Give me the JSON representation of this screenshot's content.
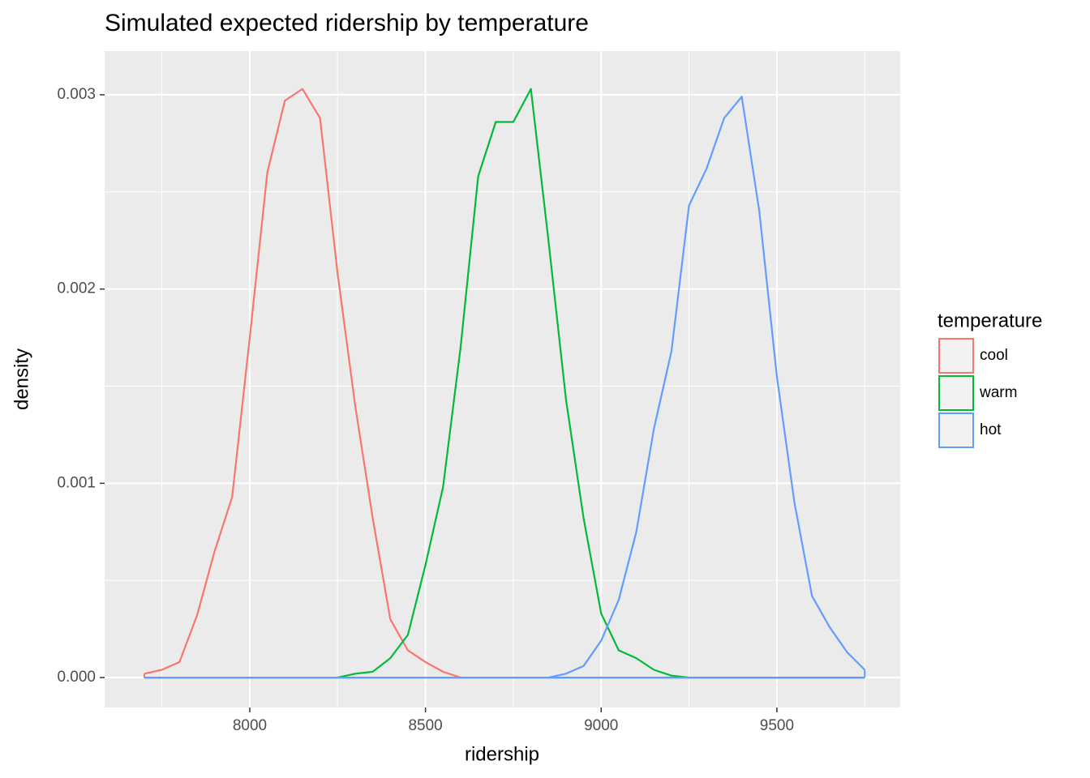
{
  "chart_data": {
    "type": "density",
    "title": "Simulated expected ridership by temperature",
    "x_label": "ridership",
    "y_label": "density",
    "legend_title": "temperature",
    "legend_position": "right",
    "x": [
      7700,
      7750,
      7800,
      7850,
      7900,
      7950,
      8000,
      8050,
      8100,
      8150,
      8200,
      8250,
      8300,
      8350,
      8400,
      8450,
      8500,
      8550,
      8600,
      8650,
      8700,
      8750,
      8800,
      8850,
      8900,
      8950,
      9000,
      9050,
      9100,
      9150,
      9200,
      9250,
      9300,
      9350,
      9400,
      9450,
      9500,
      9550,
      9600,
      9650,
      9700,
      9750
    ],
    "series": [
      {
        "name": "cool",
        "color": "#f8766d",
        "values": [
          2e-05,
          4e-05,
          8e-05,
          0.00032,
          0.00065,
          0.00093,
          0.00175,
          0.0026,
          0.00297,
          0.00303,
          0.00288,
          0.00208,
          0.0014,
          0.00082,
          0.0003,
          0.00014,
          8e-05,
          3e-05,
          0,
          0,
          0,
          0,
          0,
          0,
          0,
          0,
          0,
          0,
          0,
          0,
          0,
          0,
          0,
          0,
          0,
          0,
          0,
          0,
          0,
          0,
          0,
          0
        ]
      },
      {
        "name": "warm",
        "color": "#00ba38",
        "values": [
          0,
          0,
          0,
          0,
          0,
          0,
          0,
          0,
          0,
          0,
          0,
          0,
          2e-05,
          3e-05,
          0.0001,
          0.00022,
          0.00058,
          0.00098,
          0.0017,
          0.00258,
          0.00286,
          0.00286,
          0.00303,
          0.00225,
          0.00143,
          0.00082,
          0.00033,
          0.00014,
          0.0001,
          4e-05,
          1e-05,
          0,
          0,
          0,
          0,
          0,
          0,
          0,
          0,
          0,
          0,
          0
        ]
      },
      {
        "name": "hot",
        "color": "#619cff",
        "values": [
          0,
          0,
          0,
          0,
          0,
          0,
          0,
          0,
          0,
          0,
          0,
          0,
          0,
          0,
          0,
          0,
          0,
          0,
          0,
          0,
          0,
          0,
          0,
          0,
          2e-05,
          6e-05,
          0.00019,
          0.0004,
          0.00075,
          0.00128,
          0.00168,
          0.00243,
          0.00262,
          0.00288,
          0.00299,
          0.0024,
          0.00155,
          0.0009,
          0.00042,
          0.00026,
          0.00013,
          4e-05
        ]
      }
    ],
    "xlim": [
      7587,
      9851
    ],
    "xticks": [
      8000,
      8500,
      9000,
      9500
    ],
    "xminor": [
      7750,
      8250,
      8750,
      9250,
      9750
    ],
    "ylim": [
      -0.000154,
      0.003225
    ],
    "yticks": [
      {
        "value": 0,
        "label": "0.000"
      },
      0.001,
      0.002,
      0.003
    ],
    "yminor": [
      0.0005,
      0.0015,
      0.0025
    ],
    "grid": true
  }
}
